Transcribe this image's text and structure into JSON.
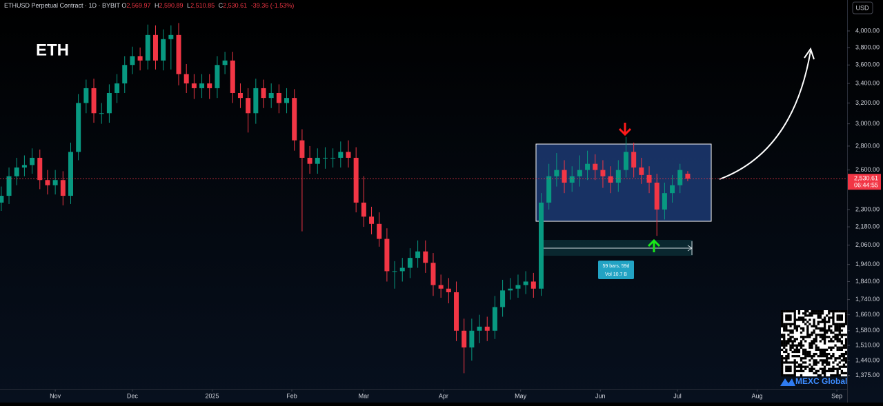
{
  "header": {
    "symbol": "ETHUSD Perpetual Contract · 1D · BYBIT",
    "open_label": "O",
    "open": "2,569.97",
    "high_label": "H",
    "high": "2,590.89",
    "low_label": "L",
    "low": "2,510.85",
    "close_label": "C",
    "close": "2,530.61",
    "change": "-39.36 (-1.53%)"
  },
  "currency": "USD",
  "watermark": "ETH",
  "brand": "MEXC Global",
  "chart_data": {
    "type": "candlestick",
    "title": "ETH",
    "up_color": "#089981",
    "down_color": "#f23645",
    "log_scale": true,
    "grid": false,
    "x": [
      0,
      3,
      6,
      9,
      12,
      15,
      18,
      21,
      24,
      27,
      30,
      33,
      36,
      39,
      42,
      45,
      48,
      51,
      54,
      57,
      60,
      63,
      66,
      69,
      72,
      75,
      78,
      81,
      84,
      87,
      90,
      93,
      96,
      99,
      102,
      105,
      108,
      111,
      114,
      117,
      120,
      123,
      126,
      129,
      132,
      135,
      138,
      141,
      144,
      147,
      150,
      153,
      156,
      159,
      162,
      165,
      168,
      171,
      174,
      177,
      180,
      183,
      186,
      189,
      192,
      195,
      198,
      201,
      204,
      207,
      210,
      213,
      216,
      219,
      222,
      225,
      228,
      231,
      234,
      237,
      240,
      243,
      246,
      249,
      252,
      255,
      258,
      261,
      264,
      267
    ],
    "open": [
      2350,
      2400,
      2550,
      2620,
      2640,
      2700,
      2520,
      2480,
      2520,
      2400,
      2750,
      3200,
      3350,
      3100,
      3100,
      3300,
      3400,
      3600,
      3700,
      3650,
      3950,
      3650,
      3900,
      3950,
      3500,
      3400,
      3350,
      3400,
      3350,
      3600,
      3650,
      3300,
      3250,
      3100,
      3350,
      3250,
      3300,
      3200,
      3250,
      2850,
      2700,
      2650,
      2700,
      2700,
      2700,
      2750,
      2700,
      2350,
      2250,
      2200,
      2100,
      1900,
      1900,
      1920,
      1980,
      2020,
      1950,
      1820,
      1800,
      1780,
      1580,
      1500,
      1580,
      1600,
      1580,
      1700,
      1790,
      1800,
      1820,
      1840,
      1800,
      2350,
      2550,
      2600,
      2500,
      2550,
      2600,
      2650,
      2600,
      2550,
      2500,
      2600,
      2750,
      2620,
      2560,
      2500,
      2300,
      2420,
      2480,
      2569.97
    ],
    "high": [
      2470,
      2620,
      2700,
      2720,
      2780,
      2770,
      2600,
      2600,
      2590,
      2830,
      3290,
      3440,
      3450,
      3200,
      3390,
      3500,
      3700,
      3810,
      3800,
      4080,
      4070,
      4020,
      4070,
      4100,
      3610,
      3500,
      3500,
      3500,
      3700,
      3750,
      3750,
      3400,
      3350,
      3450,
      3440,
      3400,
      3390,
      3350,
      3340,
      2950,
      2800,
      2780,
      2790,
      2780,
      2840,
      2850,
      2790,
      2550,
      2320,
      2280,
      2170,
      1960,
      1980,
      2040,
      2090,
      2090,
      2010,
      1880,
      1860,
      1840,
      1640,
      1640,
      1660,
      1650,
      1760,
      1850,
      1860,
      1880,
      1900,
      1890,
      2420,
      2650,
      2740,
      2680,
      2630,
      2720,
      2760,
      2730,
      2680,
      2630,
      2680,
      2880,
      2830,
      2700,
      2630,
      2570,
      2500,
      2560,
      2650,
      2590.89
    ],
    "low": [
      2290,
      2340,
      2480,
      2550,
      2570,
      2450,
      2410,
      2410,
      2330,
      2340,
      2680,
      3100,
      3010,
      3000,
      3010,
      3200,
      3300,
      3500,
      3540,
      3550,
      3550,
      3540,
      3550,
      3380,
      3300,
      3240,
      3250,
      3240,
      3250,
      3500,
      3200,
      3150,
      2920,
      3000,
      3150,
      3150,
      3100,
      3100,
      2760,
      2150,
      2570,
      2570,
      2610,
      2620,
      2620,
      2620,
      2280,
      2180,
      2130,
      2050,
      1840,
      1800,
      1840,
      1860,
      1920,
      1890,
      1760,
      1750,
      1720,
      1530,
      1385,
      1440,
      1520,
      1530,
      1540,
      1650,
      1740,
      1750,
      1770,
      1750,
      1760,
      2300,
      2470,
      2420,
      2430,
      2470,
      2520,
      2520,
      2460,
      2420,
      2430,
      2540,
      2540,
      2490,
      2420,
      2120,
      2230,
      2350,
      2420,
      2510.85
    ],
    "close": [
      2400,
      2550,
      2620,
      2640,
      2700,
      2520,
      2480,
      2520,
      2400,
      2750,
      3200,
      3350,
      3100,
      3100,
      3300,
      3400,
      3600,
      3700,
      3650,
      3950,
      3650,
      3900,
      3950,
      3500,
      3400,
      3350,
      3400,
      3350,
      3600,
      3650,
      3300,
      3250,
      3100,
      3350,
      3250,
      3300,
      3200,
      3250,
      2850,
      2700,
      2650,
      2700,
      2700,
      2700,
      2750,
      2700,
      2350,
      2250,
      2200,
      2100,
      1900,
      1900,
      1920,
      1980,
      2020,
      1950,
      1820,
      1800,
      1780,
      1580,
      1500,
      1580,
      1600,
      1580,
      1700,
      1790,
      1800,
      1820,
      1840,
      1800,
      2350,
      2550,
      2600,
      2500,
      2550,
      2600,
      2650,
      2600,
      2550,
      2500,
      2600,
      2750,
      2620,
      2560,
      2500,
      2300,
      2420,
      2480,
      2600,
      2530.61
    ],
    "xlim": [
      -0.5,
      329
    ],
    "xticks": [
      {
        "value": 21,
        "label": "Nov"
      },
      {
        "value": 51,
        "label": "Dec"
      },
      {
        "value": 82,
        "label": "2025"
      },
      {
        "value": 113,
        "label": "Feb"
      },
      {
        "value": 141,
        "label": "Mar"
      },
      {
        "value": 172,
        "label": "Apr"
      },
      {
        "value": 202,
        "label": "May"
      },
      {
        "value": 233,
        "label": "Jun"
      },
      {
        "value": 263,
        "label": "Jul"
      },
      {
        "value": 294,
        "label": "Aug"
      },
      {
        "value": 325,
        "label": "Sep"
      }
    ],
    "ylim": [
      1317,
      4403
    ],
    "yticks": [
      {
        "value": 4000,
        "label": "4,000.00"
      },
      {
        "value": 3800,
        "label": "3,800.00"
      },
      {
        "value": 3600,
        "label": "3,600.00"
      },
      {
        "value": 3400,
        "label": "3,400.00"
      },
      {
        "value": 3200,
        "label": "3,200.00"
      },
      {
        "value": 3000,
        "label": "3,000.00"
      },
      {
        "value": 2800,
        "label": "2,800.00"
      },
      {
        "value": 2600,
        "label": "2,600.00"
      },
      {
        "value": 2300,
        "label": "2,300.00"
      },
      {
        "value": 2180,
        "label": "2,180.00"
      },
      {
        "value": 2060,
        "label": "2,060.00"
      },
      {
        "value": 1940,
        "label": "1,940.00"
      },
      {
        "value": 1840,
        "label": "1,840.00"
      },
      {
        "value": 1740,
        "label": "1,740.00"
      },
      {
        "value": 1660,
        "label": "1,660.00"
      },
      {
        "value": 1580,
        "label": "1,580.00"
      },
      {
        "value": 1510,
        "label": "1,510.00"
      },
      {
        "value": 1440,
        "label": "1,440.00"
      },
      {
        "value": 1375,
        "label": "1,375.00"
      }
    ],
    "last_price": {
      "value": 2530.61,
      "label": "2,530.61"
    },
    "countdown": "06:44:55",
    "measure": {
      "bars": "59 bars, 59d",
      "volume": "Vol 10.7 B"
    }
  }
}
